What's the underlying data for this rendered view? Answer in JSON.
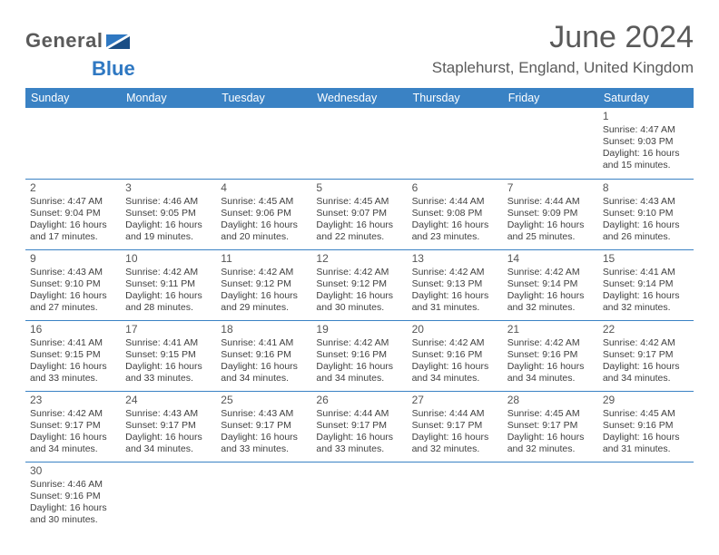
{
  "brand": {
    "part1": "General",
    "part2": "Blue"
  },
  "title": "June 2024",
  "location": "Staplehurst, England, United Kingdom",
  "colors": {
    "header_bg": "#3a82c4",
    "header_text": "#ffffff",
    "border": "#3a82c4",
    "brand_gray": "#5a5a5a",
    "brand_blue": "#2f78c2",
    "cell_text": "#404040",
    "page_bg": "#ffffff"
  },
  "typography": {
    "month_title_pt": 26,
    "location_pt": 13,
    "day_header_pt": 9.5,
    "date_num_pt": 9,
    "cell_text_pt": 8,
    "logo_pt": 16
  },
  "day_headers": [
    "Sunday",
    "Monday",
    "Tuesday",
    "Wednesday",
    "Thursday",
    "Friday",
    "Saturday"
  ],
  "weeks": [
    [
      null,
      null,
      null,
      null,
      null,
      null,
      {
        "d": "1",
        "sr": "4:47 AM",
        "ss": "9:03 PM",
        "dl": "16 hours and 15 minutes."
      }
    ],
    [
      {
        "d": "2",
        "sr": "4:47 AM",
        "ss": "9:04 PM",
        "dl": "16 hours and 17 minutes."
      },
      {
        "d": "3",
        "sr": "4:46 AM",
        "ss": "9:05 PM",
        "dl": "16 hours and 19 minutes."
      },
      {
        "d": "4",
        "sr": "4:45 AM",
        "ss": "9:06 PM",
        "dl": "16 hours and 20 minutes."
      },
      {
        "d": "5",
        "sr": "4:45 AM",
        "ss": "9:07 PM",
        "dl": "16 hours and 22 minutes."
      },
      {
        "d": "6",
        "sr": "4:44 AM",
        "ss": "9:08 PM",
        "dl": "16 hours and 23 minutes."
      },
      {
        "d": "7",
        "sr": "4:44 AM",
        "ss": "9:09 PM",
        "dl": "16 hours and 25 minutes."
      },
      {
        "d": "8",
        "sr": "4:43 AM",
        "ss": "9:10 PM",
        "dl": "16 hours and 26 minutes."
      }
    ],
    [
      {
        "d": "9",
        "sr": "4:43 AM",
        "ss": "9:10 PM",
        "dl": "16 hours and 27 minutes."
      },
      {
        "d": "10",
        "sr": "4:42 AM",
        "ss": "9:11 PM",
        "dl": "16 hours and 28 minutes."
      },
      {
        "d": "11",
        "sr": "4:42 AM",
        "ss": "9:12 PM",
        "dl": "16 hours and 29 minutes."
      },
      {
        "d": "12",
        "sr": "4:42 AM",
        "ss": "9:12 PM",
        "dl": "16 hours and 30 minutes."
      },
      {
        "d": "13",
        "sr": "4:42 AM",
        "ss": "9:13 PM",
        "dl": "16 hours and 31 minutes."
      },
      {
        "d": "14",
        "sr": "4:42 AM",
        "ss": "9:14 PM",
        "dl": "16 hours and 32 minutes."
      },
      {
        "d": "15",
        "sr": "4:41 AM",
        "ss": "9:14 PM",
        "dl": "16 hours and 32 minutes."
      }
    ],
    [
      {
        "d": "16",
        "sr": "4:41 AM",
        "ss": "9:15 PM",
        "dl": "16 hours and 33 minutes."
      },
      {
        "d": "17",
        "sr": "4:41 AM",
        "ss": "9:15 PM",
        "dl": "16 hours and 33 minutes."
      },
      {
        "d": "18",
        "sr": "4:41 AM",
        "ss": "9:16 PM",
        "dl": "16 hours and 34 minutes."
      },
      {
        "d": "19",
        "sr": "4:42 AM",
        "ss": "9:16 PM",
        "dl": "16 hours and 34 minutes."
      },
      {
        "d": "20",
        "sr": "4:42 AM",
        "ss": "9:16 PM",
        "dl": "16 hours and 34 minutes."
      },
      {
        "d": "21",
        "sr": "4:42 AM",
        "ss": "9:16 PM",
        "dl": "16 hours and 34 minutes."
      },
      {
        "d": "22",
        "sr": "4:42 AM",
        "ss": "9:17 PM",
        "dl": "16 hours and 34 minutes."
      }
    ],
    [
      {
        "d": "23",
        "sr": "4:42 AM",
        "ss": "9:17 PM",
        "dl": "16 hours and 34 minutes."
      },
      {
        "d": "24",
        "sr": "4:43 AM",
        "ss": "9:17 PM",
        "dl": "16 hours and 34 minutes."
      },
      {
        "d": "25",
        "sr": "4:43 AM",
        "ss": "9:17 PM",
        "dl": "16 hours and 33 minutes."
      },
      {
        "d": "26",
        "sr": "4:44 AM",
        "ss": "9:17 PM",
        "dl": "16 hours and 33 minutes."
      },
      {
        "d": "27",
        "sr": "4:44 AM",
        "ss": "9:17 PM",
        "dl": "16 hours and 32 minutes."
      },
      {
        "d": "28",
        "sr": "4:45 AM",
        "ss": "9:17 PM",
        "dl": "16 hours and 32 minutes."
      },
      {
        "d": "29",
        "sr": "4:45 AM",
        "ss": "9:16 PM",
        "dl": "16 hours and 31 minutes."
      }
    ],
    [
      {
        "d": "30",
        "sr": "4:46 AM",
        "ss": "9:16 PM",
        "dl": "16 hours and 30 minutes."
      },
      null,
      null,
      null,
      null,
      null,
      null
    ]
  ],
  "labels": {
    "sunrise": "Sunrise: ",
    "sunset": "Sunset: ",
    "daylight": "Daylight: "
  }
}
